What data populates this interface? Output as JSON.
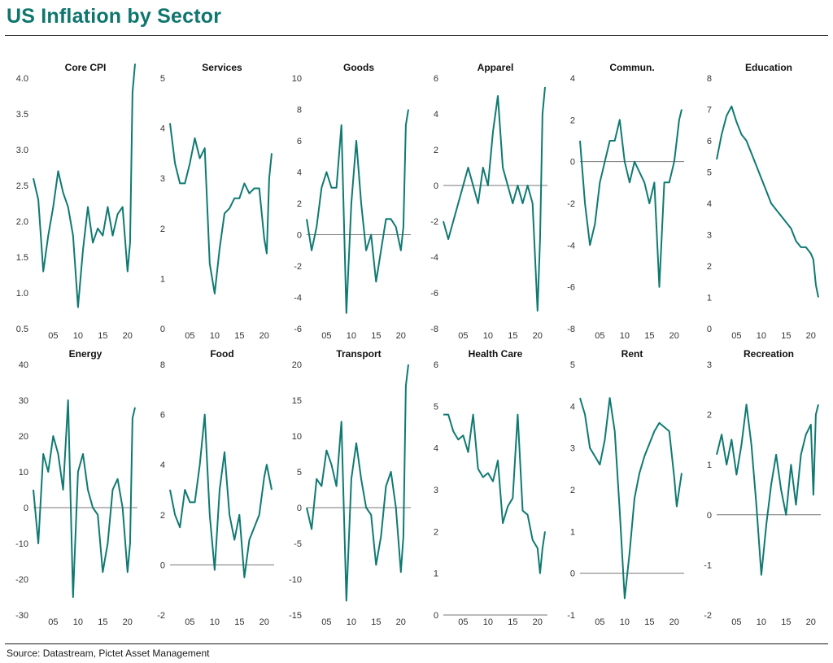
{
  "title": "US Inflation by Sector",
  "source": "Source: Datastream, Pictet Asset Management",
  "colors": {
    "series": "#0f7a72",
    "axis": "#777777",
    "title": "#0f766e"
  },
  "chart_data": [
    {
      "type": "line",
      "title": "Core CPI",
      "xlim": [
        2001,
        2022
      ],
      "ylim": [
        0.5,
        4.0
      ],
      "yticks": [
        "0.5",
        "1.0",
        "1.5",
        "2.0",
        "2.5",
        "3.0",
        "3.5",
        "4.0"
      ],
      "xticks": [
        "05",
        "10",
        "15",
        "20"
      ],
      "zero_line": false,
      "x": [
        2001,
        2002,
        2003,
        2004,
        2005,
        2006,
        2007,
        2008,
        2009,
        2010,
        2011,
        2012,
        2013,
        2014,
        2015,
        2016,
        2017,
        2018,
        2019,
        2020,
        2020.5,
        2021,
        2021.5
      ],
      "y": [
        2.6,
        2.3,
        1.3,
        1.8,
        2.2,
        2.7,
        2.4,
        2.2,
        1.8,
        0.8,
        1.6,
        2.2,
        1.7,
        1.9,
        1.8,
        2.2,
        1.8,
        2.1,
        2.2,
        1.3,
        1.7,
        3.8,
        4.2
      ]
    },
    {
      "type": "line",
      "title": "Services",
      "xlim": [
        2001,
        2022
      ],
      "ylim": [
        0,
        5
      ],
      "yticks": [
        "0",
        "1",
        "2",
        "3",
        "4",
        "5"
      ],
      "xticks": [
        "05",
        "10",
        "15",
        "20"
      ],
      "zero_line": false,
      "x": [
        2001,
        2002,
        2003,
        2004,
        2005,
        2006,
        2007,
        2008,
        2009,
        2010,
        2011,
        2012,
        2013,
        2014,
        2015,
        2016,
        2017,
        2018,
        2019,
        2020,
        2020.5,
        2021,
        2021.5
      ],
      "y": [
        4.1,
        3.3,
        2.9,
        2.9,
        3.3,
        3.8,
        3.4,
        3.6,
        1.3,
        0.7,
        1.6,
        2.3,
        2.4,
        2.6,
        2.6,
        2.9,
        2.7,
        2.8,
        2.8,
        1.8,
        1.5,
        3.0,
        3.5
      ]
    },
    {
      "type": "line",
      "title": "Goods",
      "xlim": [
        2001,
        2022
      ],
      "ylim": [
        -6,
        10
      ],
      "yticks": [
        "-6",
        "-4",
        "-2",
        "0",
        "2",
        "4",
        "6",
        "8",
        "10"
      ],
      "xticks": [
        "05",
        "10",
        "15",
        "20"
      ],
      "zero_line": true,
      "x": [
        2001,
        2002,
        2003,
        2004,
        2005,
        2006,
        2007,
        2008,
        2009,
        2010,
        2011,
        2012,
        2013,
        2014,
        2015,
        2016,
        2017,
        2018,
        2019,
        2020,
        2020.5,
        2021,
        2021.5
      ],
      "y": [
        1,
        -1,
        0.5,
        3,
        4,
        3,
        3,
        7,
        -5,
        2,
        6,
        2,
        -1,
        0,
        -3,
        -1,
        1,
        1,
        0.5,
        -1,
        0.5,
        7,
        8
      ]
    },
    {
      "type": "line",
      "title": "Apparel",
      "xlim": [
        2001,
        2022
      ],
      "ylim": [
        -8,
        6
      ],
      "yticks": [
        "-8",
        "-6",
        "-4",
        "-2",
        "0",
        "2",
        "4",
        "6"
      ],
      "xticks": [
        "05",
        "10",
        "15",
        "20"
      ],
      "zero_line": true,
      "x": [
        2001,
        2002,
        2003,
        2004,
        2005,
        2006,
        2007,
        2008,
        2009,
        2010,
        2011,
        2012,
        2013,
        2014,
        2015,
        2016,
        2017,
        2018,
        2019,
        2020,
        2020.5,
        2021,
        2021.5
      ],
      "y": [
        -2,
        -3,
        -2,
        -1,
        0,
        1,
        0,
        -1,
        1,
        0,
        3,
        5,
        1,
        0,
        -1,
        0,
        -1,
        0,
        -1,
        -7,
        -3,
        4,
        5.5
      ]
    },
    {
      "type": "line",
      "title": "Commun.",
      "xlim": [
        2001,
        2022
      ],
      "ylim": [
        -8,
        4
      ],
      "yticks": [
        "-8",
        "-6",
        "-4",
        "-2",
        "0",
        "2",
        "4"
      ],
      "xticks": [
        "05",
        "10",
        "15",
        "20"
      ],
      "zero_line": true,
      "x": [
        2001,
        2002,
        2003,
        2004,
        2005,
        2006,
        2007,
        2008,
        2009,
        2010,
        2011,
        2012,
        2013,
        2014,
        2015,
        2016,
        2017,
        2018,
        2019,
        2020,
        2020.5,
        2021,
        2021.5
      ],
      "y": [
        1,
        -2,
        -4,
        -3,
        -1,
        0,
        1,
        1,
        2,
        0,
        -1,
        0,
        -0.5,
        -1,
        -2,
        -1,
        -6,
        -1,
        -1,
        0,
        1,
        2,
        2.5
      ]
    },
    {
      "type": "line",
      "title": "Education",
      "xlim": [
        2001,
        2022
      ],
      "ylim": [
        0,
        8
      ],
      "yticks": [
        "0",
        "1",
        "2",
        "3",
        "4",
        "5",
        "6",
        "7",
        "8"
      ],
      "xticks": [
        "05",
        "10",
        "15",
        "20"
      ],
      "zero_line": false,
      "x": [
        2001,
        2002,
        2003,
        2004,
        2005,
        2006,
        2007,
        2008,
        2009,
        2010,
        2011,
        2012,
        2013,
        2014,
        2015,
        2016,
        2017,
        2018,
        2019,
        2020,
        2020.5,
        2021,
        2021.5
      ],
      "y": [
        5.4,
        6.2,
        6.8,
        7.1,
        6.6,
        6.2,
        6.0,
        5.6,
        5.2,
        4.8,
        4.4,
        4.0,
        3.8,
        3.6,
        3.4,
        3.2,
        2.8,
        2.6,
        2.6,
        2.4,
        2.2,
        1.4,
        1.0
      ]
    },
    {
      "type": "line",
      "title": "Energy",
      "xlim": [
        2001,
        2022
      ],
      "ylim": [
        -30,
        40
      ],
      "yticks": [
        "-30",
        "-20",
        "-10",
        "0",
        "10",
        "20",
        "30",
        "40"
      ],
      "xticks": [
        "05",
        "10",
        "15",
        "20"
      ],
      "zero_line": true,
      "x": [
        2001,
        2002,
        2003,
        2004,
        2005,
        2006,
        2007,
        2008,
        2009,
        2010,
        2011,
        2012,
        2013,
        2014,
        2015,
        2016,
        2017,
        2018,
        2019,
        2020,
        2020.5,
        2021,
        2021.5
      ],
      "y": [
        5,
        -10,
        15,
        10,
        20,
        15,
        5,
        30,
        -25,
        10,
        15,
        5,
        0,
        -2,
        -18,
        -10,
        5,
        8,
        0,
        -18,
        -10,
        25,
        28
      ]
    },
    {
      "type": "line",
      "title": "Food",
      "xlim": [
        2001,
        2022
      ],
      "ylim": [
        -2,
        8
      ],
      "yticks": [
        "-2",
        "0",
        "2",
        "4",
        "6",
        "8"
      ],
      "xticks": [
        "05",
        "10",
        "15",
        "20"
      ],
      "zero_line": true,
      "x": [
        2001,
        2002,
        2003,
        2004,
        2005,
        2006,
        2007,
        2008,
        2009,
        2010,
        2011,
        2012,
        2013,
        2014,
        2015,
        2016,
        2017,
        2018,
        2019,
        2020,
        2020.5,
        2021,
        2021.5
      ],
      "y": [
        3,
        2,
        1.5,
        3,
        2.5,
        2.5,
        4,
        6,
        2,
        -0.2,
        3,
        4.5,
        2,
        1,
        2,
        -0.5,
        1,
        1.5,
        2,
        3.5,
        4,
        3.5,
        3
      ]
    },
    {
      "type": "line",
      "title": "Transport",
      "xlim": [
        2001,
        2022
      ],
      "ylim": [
        -15,
        20
      ],
      "yticks": [
        "-15",
        "-10",
        "-5",
        "0",
        "5",
        "10",
        "15",
        "20"
      ],
      "xticks": [
        "05",
        "10",
        "15",
        "20"
      ],
      "zero_line": true,
      "x": [
        2001,
        2002,
        2003,
        2004,
        2005,
        2006,
        2007,
        2008,
        2009,
        2010,
        2011,
        2012,
        2013,
        2014,
        2015,
        2016,
        2017,
        2018,
        2019,
        2020,
        2020.5,
        2021,
        2021.5
      ],
      "y": [
        0,
        -3,
        4,
        3,
        8,
        6,
        3,
        12,
        -13,
        4,
        9,
        4,
        0,
        -1,
        -8,
        -4,
        3,
        5,
        0,
        -9,
        -4,
        17,
        20
      ]
    },
    {
      "type": "line",
      "title": "Health Care",
      "xlim": [
        2001,
        2022
      ],
      "ylim": [
        0,
        6
      ],
      "yticks": [
        "0",
        "1",
        "2",
        "3",
        "4",
        "5",
        "6"
      ],
      "xticks": [
        "05",
        "10",
        "15",
        "20"
      ],
      "zero_line": false,
      "x": [
        2001,
        2002,
        2003,
        2004,
        2005,
        2006,
        2007,
        2008,
        2009,
        2010,
        2011,
        2012,
        2013,
        2014,
        2015,
        2016,
        2017,
        2018,
        2019,
        2020,
        2020.5,
        2021,
        2021.5
      ],
      "y": [
        4.8,
        4.8,
        4.4,
        4.2,
        4.3,
        3.9,
        4.8,
        3.5,
        3.3,
        3.4,
        3.2,
        3.7,
        2.2,
        2.6,
        2.8,
        4.8,
        2.5,
        2.4,
        1.8,
        1.6,
        1.0,
        1.6,
        2.0
      ]
    },
    {
      "type": "line",
      "title": "Rent",
      "xlim": [
        2001,
        2022
      ],
      "ylim": [
        -1,
        5
      ],
      "yticks": [
        "-1",
        "0",
        "1",
        "2",
        "3",
        "4",
        "5"
      ],
      "xticks": [
        "05",
        "10",
        "15",
        "20"
      ],
      "zero_line": true,
      "x": [
        2001,
        2002,
        2003,
        2004,
        2005,
        2006,
        2007,
        2008,
        2009,
        2010,
        2011,
        2012,
        2013,
        2014,
        2015,
        2016,
        2017,
        2018,
        2019,
        2020,
        2020.5,
        2021,
        2021.5
      ],
      "y": [
        4.2,
        3.8,
        3.0,
        2.8,
        2.6,
        3.2,
        4.2,
        3.4,
        1.5,
        -0.6,
        0.5,
        1.8,
        2.4,
        2.8,
        3.1,
        3.4,
        3.6,
        3.5,
        3.4,
        2.3,
        1.6,
        2.0,
        2.4
      ]
    },
    {
      "type": "line",
      "title": "Recreation",
      "xlim": [
        2001,
        2022
      ],
      "ylim": [
        -2,
        3
      ],
      "yticks": [
        "-2",
        "-1",
        "0",
        "1",
        "2",
        "3"
      ],
      "xticks": [
        "05",
        "10",
        "15",
        "20"
      ],
      "zero_line": true,
      "x": [
        2001,
        2002,
        2003,
        2004,
        2005,
        2006,
        2007,
        2008,
        2009,
        2010,
        2011,
        2012,
        2013,
        2014,
        2015,
        2016,
        2017,
        2018,
        2019,
        2020,
        2020.5,
        2021,
        2021.5
      ],
      "y": [
        1.2,
        1.6,
        1.0,
        1.5,
        0.8,
        1.4,
        2.2,
        1.4,
        0.2,
        -1.2,
        -0.2,
        0.6,
        1.2,
        0.5,
        0.0,
        1.0,
        0.2,
        1.2,
        1.6,
        1.8,
        0.4,
        2.0,
        2.2
      ]
    }
  ]
}
